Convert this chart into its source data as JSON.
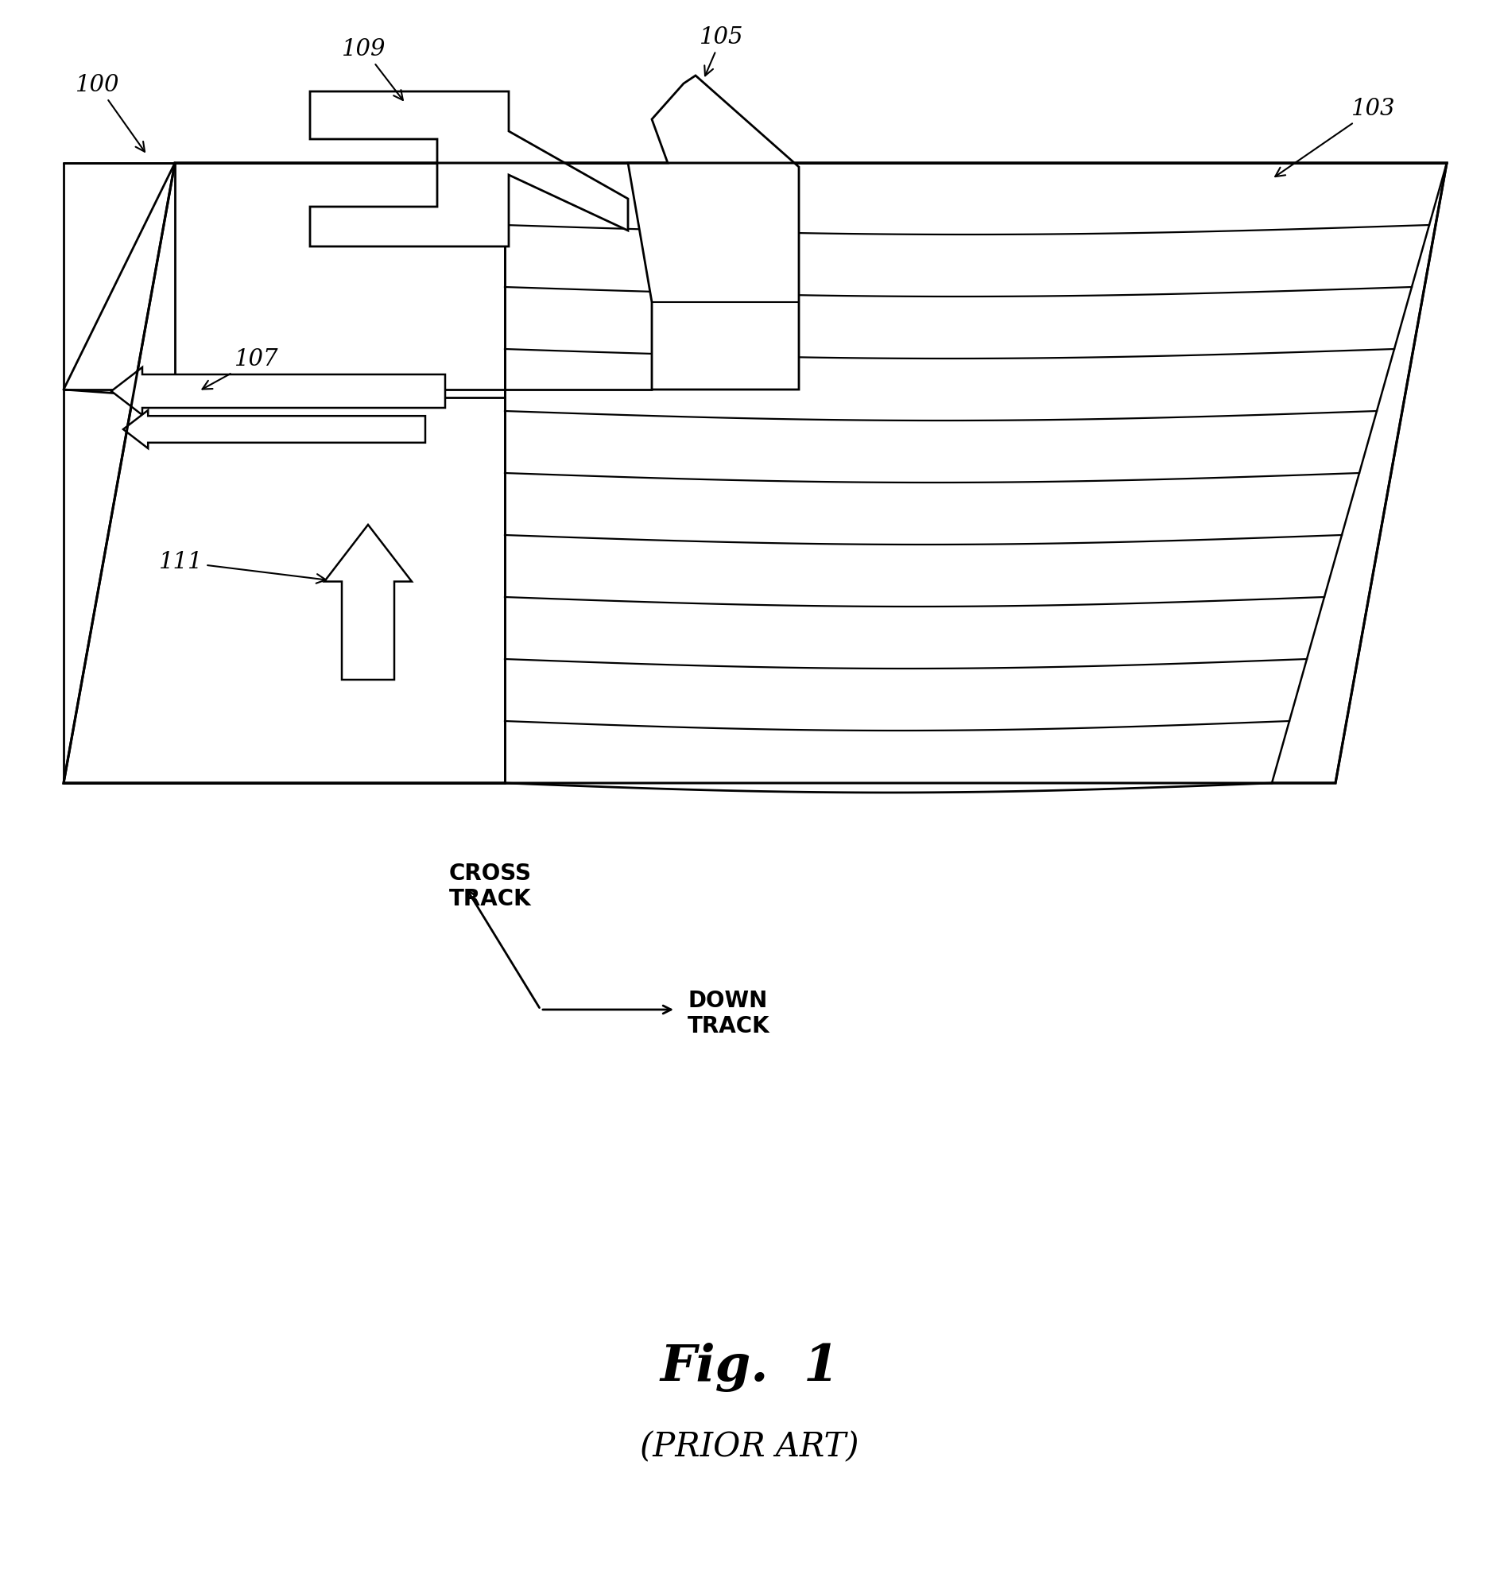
{
  "fig_label": "Fig.  1",
  "fig_sublabel": "(PRIOR ART)",
  "label_100": "100",
  "label_103": "103",
  "label_105": "105",
  "label_107": "107",
  "label_109": "109",
  "label_111": "111",
  "cross_track": "CROSS\nTRACK",
  "down_track": "DOWN\nTRACK",
  "bg_color": "#ffffff",
  "line_color": "#000000",
  "lw_main": 1.8
}
